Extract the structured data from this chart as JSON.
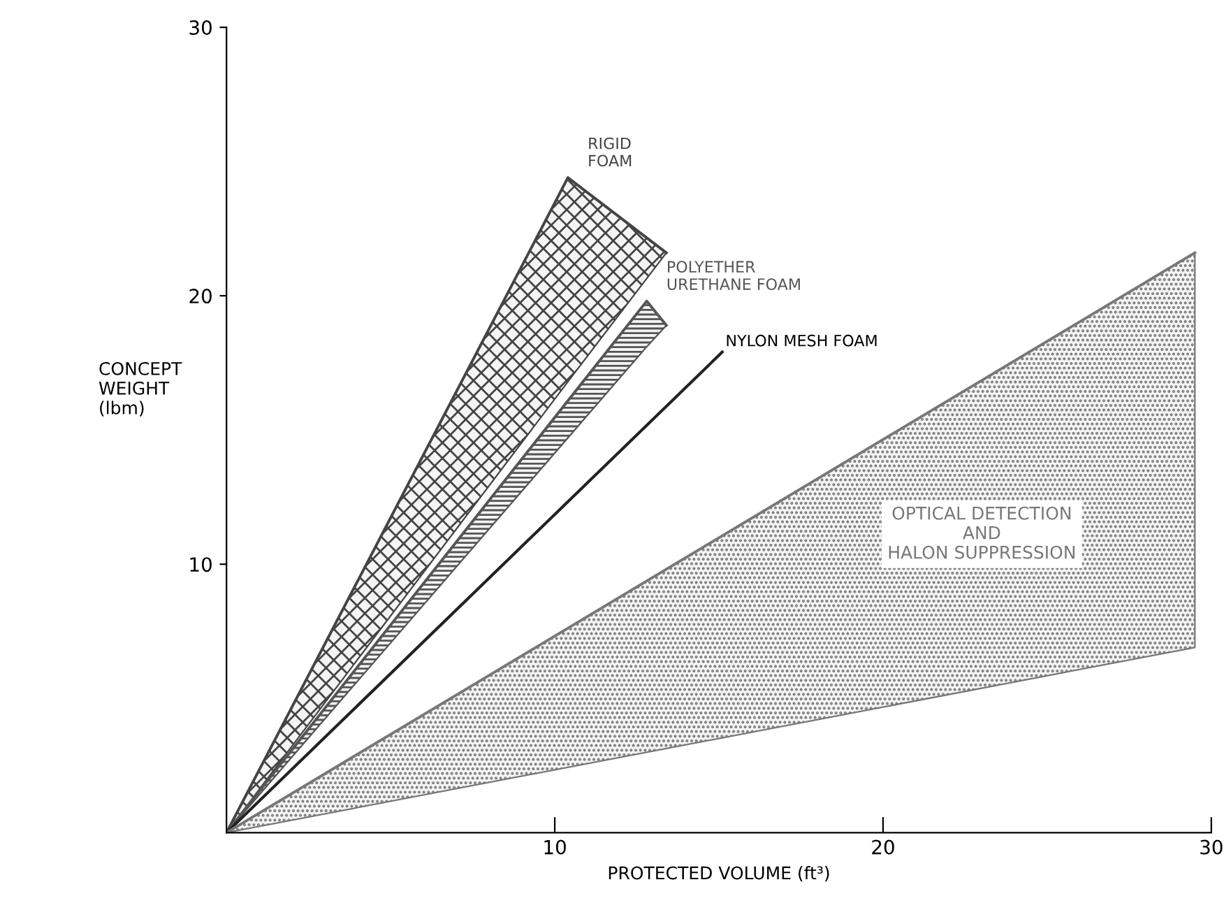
{
  "chart_data": {
    "type": "line",
    "xlabel": "PROTECTED VOLUME (ft³)",
    "ylabel": "CONCEPT\nWEIGHT\n(lbm)",
    "series": [
      {
        "name": "RIGID\nFOAM",
        "color": "#444444",
        "x": [
          0,
          10.4,
          13.4
        ],
        "values": [
          0,
          24.4,
          21.6
        ],
        "upper": [
          0,
          24.4,
          21.6
        ],
        "lower": [
          0,
          16.8,
          21.6
        ]
      },
      {
        "name": "POLYETHER\nURETHANE FOAM",
        "color": "#555555",
        "x": [
          0,
          12.8,
          13.4
        ],
        "values": [
          0,
          19.8,
          18.9
        ],
        "upper": [
          0,
          19.8,
          18.9
        ],
        "lower": [
          0,
          18.1,
          18.9
        ]
      },
      {
        "name": "NYLON MESH FOAM",
        "color": "#222222",
        "x": [
          0,
          15.1
        ],
        "values": [
          0,
          17.9
        ]
      },
      {
        "name": "OPTICAL DETECTION\nAND\nHALON SUPPRESSION",
        "color": "#777777",
        "x": [
          0,
          29.5
        ],
        "values": [
          0,
          21.6
        ],
        "upper": [
          0,
          21.6
        ],
        "lower": [
          0,
          6.9
        ]
      }
    ],
    "xlim": [
      0,
      30
    ],
    "ylim": [
      0,
      30
    ],
    "xticks": [
      10,
      20,
      30
    ],
    "yticks": [
      10,
      20,
      30
    ],
    "grid": false,
    "legend": false
  }
}
